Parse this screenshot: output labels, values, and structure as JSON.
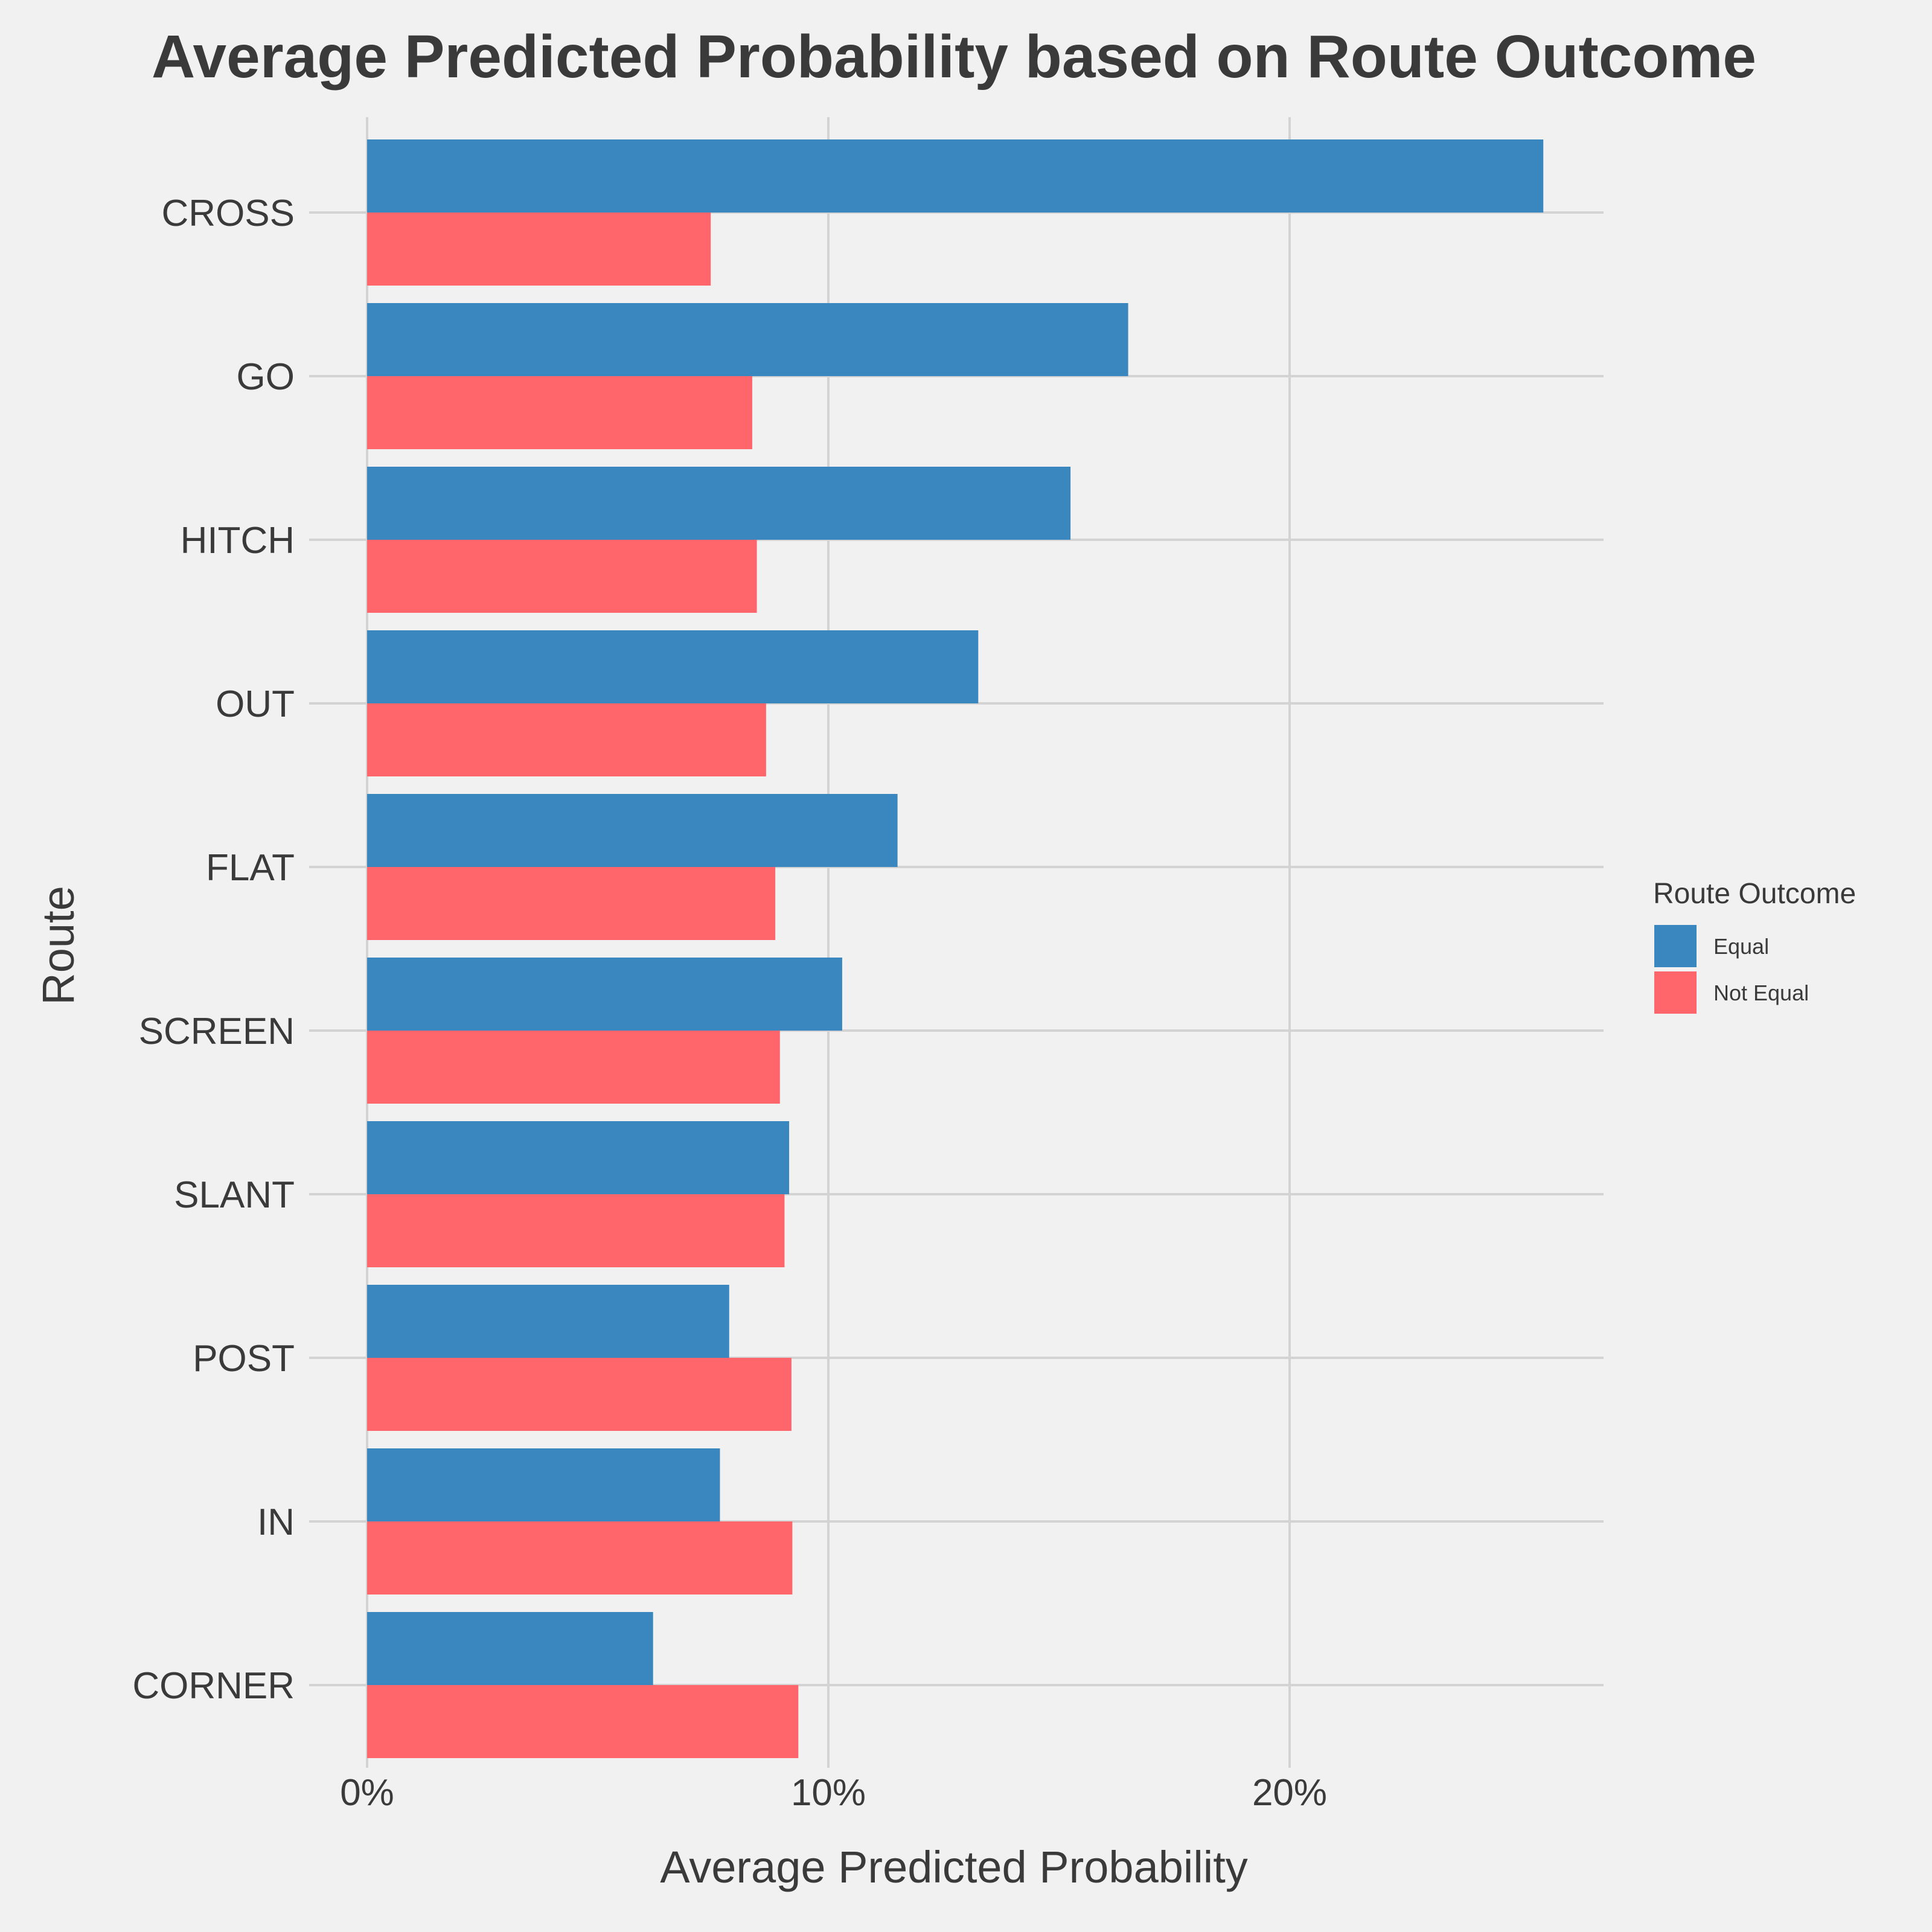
{
  "chart_data": {
    "type": "bar",
    "orientation": "horizontal",
    "title": "Average Predicted Probability based on Route Outcome",
    "xlabel": "Average Predicted Probability",
    "ylabel": "Route",
    "categories": [
      "CROSS",
      "GO",
      "HITCH",
      "OUT",
      "FLAT",
      "SCREEN",
      "SLANT",
      "POST",
      "IN",
      "CORNER"
    ],
    "series": [
      {
        "name": "Equal",
        "color": "#3a87bf",
        "values": [
          25.5,
          16.5,
          15.25,
          13.25,
          11.5,
          10.3,
          9.15,
          7.85,
          7.65,
          6.2
        ]
      },
      {
        "name": "Not Equal",
        "color": "#ff666c",
        "values": [
          7.45,
          8.35,
          8.45,
          8.65,
          8.85,
          8.95,
          9.05,
          9.2,
          9.22,
          9.35
        ]
      }
    ],
    "xlim": [
      0,
      26.8
    ],
    "xticks": [
      0,
      10,
      20
    ],
    "xtick_labels": [
      "0%",
      "10%",
      "20%"
    ],
    "legend": {
      "title": "Route Outcome",
      "position": "right"
    },
    "grid": true
  }
}
